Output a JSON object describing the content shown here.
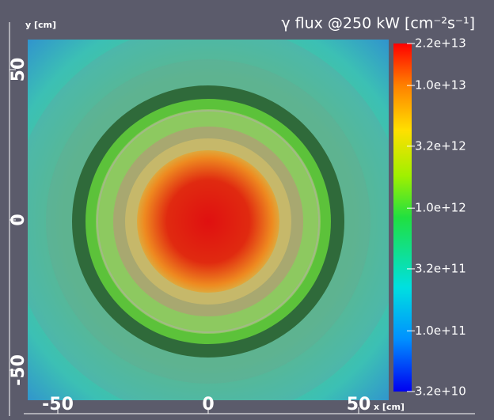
{
  "chart_data": {
    "type": "heatmap",
    "title": "γ flux @250 kW [cm⁻²s⁻¹]",
    "xlabel": "x [cm]",
    "ylabel": "y [cm]",
    "xlim": [
      -60,
      60
    ],
    "ylim": [
      -60,
      60
    ],
    "xticks": [
      -50,
      0,
      50
    ],
    "yticks": [
      -50,
      0,
      50
    ],
    "colorbar": {
      "scale": "log",
      "clim": [
        32000000000,
        22000000000000
      ],
      "ticks": [
        {
          "value": 22000000000000,
          "label": "2.2e+13"
        },
        {
          "value": 10000000000000,
          "label": "1.0e+13"
        },
        {
          "value": 3200000000000,
          "label": "3.2e+12"
        },
        {
          "value": 1000000000000,
          "label": "1.0e+12"
        },
        {
          "value": 320000000000,
          "label": "3.2e+11"
        },
        {
          "value": 100000000000,
          "label": "1.0e+11"
        },
        {
          "value": 32000000000,
          "label": "3.2e+10"
        }
      ]
    }
  }
}
